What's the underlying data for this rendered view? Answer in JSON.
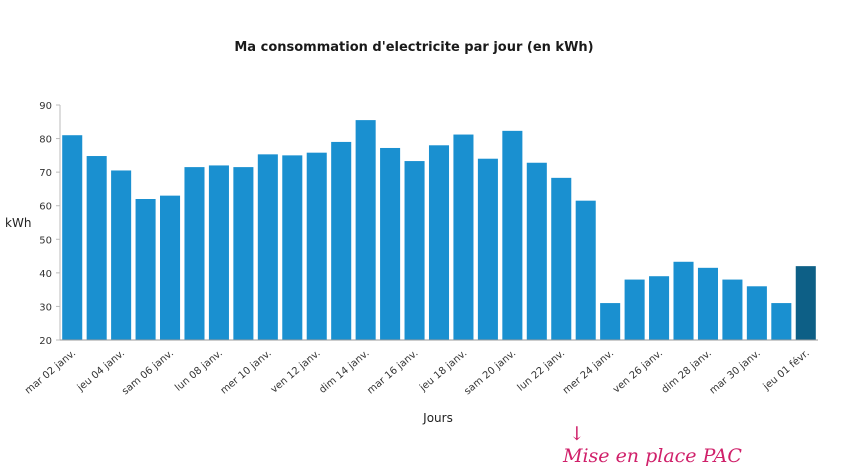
{
  "chart_data": {
    "type": "bar",
    "title": "Ma consommation d'electricite par jour (en kWh)",
    "xlabel": "Jours",
    "ylabel": "kWh",
    "ylim": [
      20,
      90
    ],
    "yticks": [
      20,
      30,
      40,
      50,
      60,
      70,
      80,
      90
    ],
    "grid": false,
    "categories": [
      "mar 02 janv.",
      "mer 03 janv.",
      "jeu 04 janv.",
      "ven 05 janv.",
      "sam 06 janv.",
      "dim 07 janv.",
      "lun 08 janv.",
      "mar 09 janv.",
      "mer 10 janv.",
      "jeu 11 janv.",
      "ven 12 janv.",
      "sam 13 janv.",
      "dim 14 janv.",
      "lun 15 janv.",
      "mar 16 janv.",
      "mer 17 janv.",
      "jeu 18 janv.",
      "ven 19 janv.",
      "sam 20 janv.",
      "dim 21 janv.",
      "lun 22 janv.",
      "mar 23 janv.",
      "mer 24 janv.",
      "jeu 25 janv.",
      "ven 26 janv.",
      "sam 27 janv.",
      "dim 28 janv.",
      "lun 29 janv.",
      "mar 30 janv.",
      "mer 31 janv.",
      "jeu 01 févr."
    ],
    "visible_tick_labels": [
      "mar 02 janv.",
      "jeu 04 janv.",
      "sam 06 janv.",
      "lun 08 janv.",
      "mer 10 janv.",
      "ven 12 janv.",
      "dim 14 janv.",
      "mar 16 janv.",
      "jeu 18 janv.",
      "sam 20 janv.",
      "lun 22 janv.",
      "mer 24 janv.",
      "ven 26 janv.",
      "dim 28 janv.",
      "mar 30 janv.",
      "jeu 01 févr."
    ],
    "values": [
      81,
      74.8,
      70.5,
      62,
      63,
      71.5,
      72,
      71.5,
      75.3,
      75,
      75.8,
      79,
      85.5,
      77.2,
      73.3,
      78,
      81.2,
      74,
      82.3,
      72.8,
      68.3,
      61.5,
      31,
      38,
      39,
      43.3,
      41.5,
      38,
      36,
      31,
      42
    ],
    "colors": {
      "bar": "#1a90d0",
      "bar_highlight": "#0d5f86"
    },
    "annotation": {
      "text": "Mise en place PAC",
      "arrow": "↓",
      "color": "#d0206a"
    }
  }
}
